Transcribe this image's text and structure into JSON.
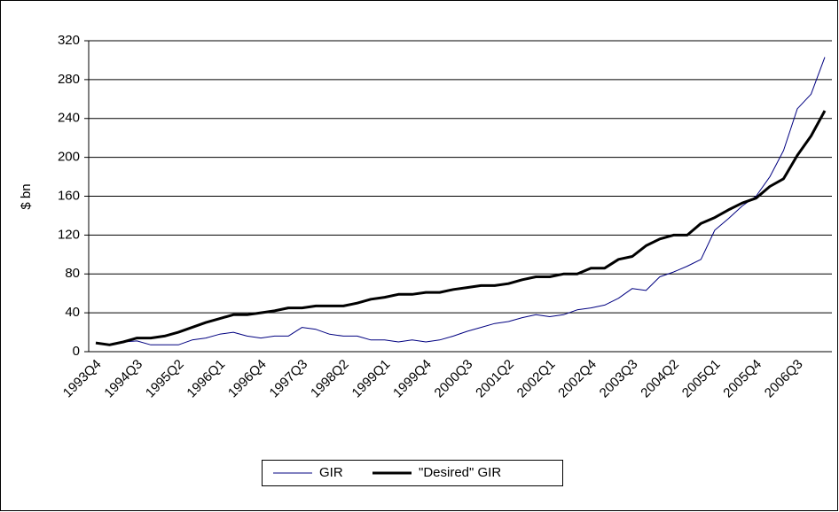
{
  "chart_data": {
    "type": "line",
    "y_label": "$ bn",
    "categories": [
      "1993Q4",
      null,
      null,
      "1994Q3",
      null,
      null,
      "1995Q2",
      null,
      null,
      "1996Q1",
      null,
      null,
      "1996Q4",
      null,
      null,
      "1997Q3",
      null,
      null,
      "1998Q2",
      null,
      null,
      "1999Q1",
      null,
      null,
      "1999Q4",
      null,
      null,
      "2000Q3",
      null,
      null,
      "2001Q2",
      null,
      null,
      "2002Q1",
      null,
      null,
      "2002Q4",
      null,
      null,
      "2003Q3",
      null,
      null,
      "2004Q2",
      null,
      null,
      "2005Q1",
      null,
      null,
      "2005Q4",
      null,
      null,
      "2006Q3",
      null,
      null
    ],
    "series": [
      {
        "name": "GIR",
        "color": "#000080",
        "width": 1,
        "values": [
          9,
          7,
          10,
          11,
          7,
          7,
          7,
          12,
          14,
          18,
          20,
          16,
          14,
          16,
          16,
          25,
          23,
          18,
          16,
          16,
          12,
          12,
          10,
          12,
          10,
          12,
          16,
          21,
          25,
          29,
          31,
          35,
          38,
          36,
          38,
          43,
          45,
          48,
          55,
          65,
          63,
          77,
          82,
          88,
          95,
          125,
          137,
          150,
          160,
          180,
          207,
          250,
          265,
          303
        ]
      },
      {
        "name": "\"Desired\" GIR",
        "color": "#000000",
        "width": 3,
        "values": [
          9,
          7,
          10,
          14,
          14,
          16,
          20,
          25,
          30,
          34,
          38,
          38,
          40,
          42,
          45,
          45,
          47,
          47,
          47,
          50,
          54,
          56,
          59,
          59,
          61,
          61,
          64,
          66,
          68,
          68,
          70,
          74,
          77,
          77,
          80,
          80,
          86,
          86,
          95,
          98,
          109,
          116,
          120,
          120,
          132,
          138,
          146,
          153,
          158,
          170,
          178,
          202,
          222,
          248
        ]
      }
    ],
    "ylim": [
      0,
      320
    ],
    "yticks": [
      0,
      40,
      80,
      120,
      160,
      200,
      240,
      280,
      320
    ],
    "grid": true
  }
}
